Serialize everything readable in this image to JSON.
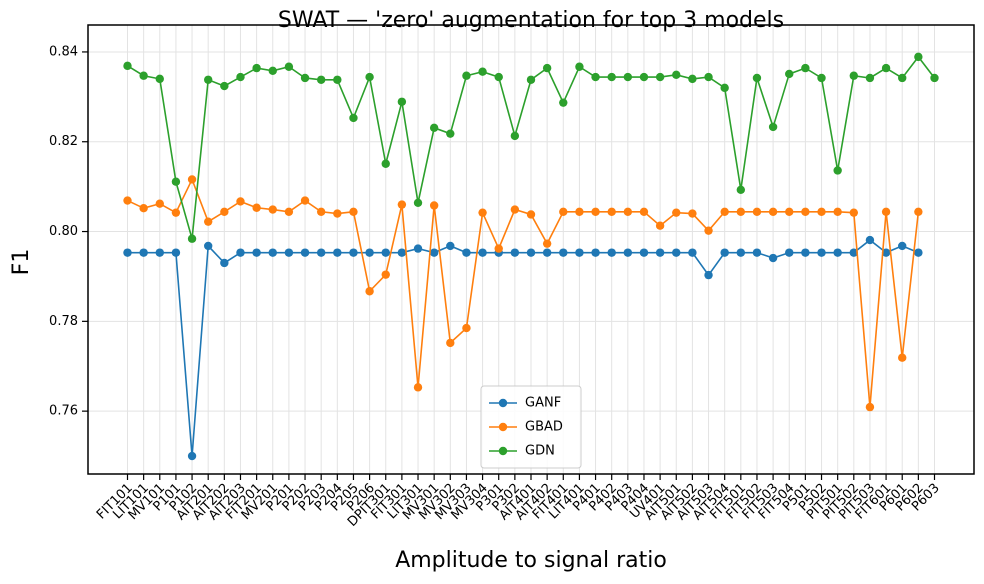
{
  "chart_data": {
    "type": "line",
    "title": "SWAT — 'zero' augmentation for top 3 models",
    "xlabel": "Amplitude to signal ratio",
    "ylabel": "F1",
    "categories": [
      "FIT101",
      "LIT101",
      "MV101",
      "P101",
      "P102",
      "AIT201",
      "AIT202",
      "AIT203",
      "FIT201",
      "MV201",
      "P201",
      "P202",
      "P203",
      "P204",
      "P205",
      "P206",
      "DPIT301",
      "FIT301",
      "LIT301",
      "MV301",
      "MV302",
      "MV303",
      "MV304",
      "P301",
      "P302",
      "AIT401",
      "AIT402",
      "FIT401",
      "LIT401",
      "P401",
      "P402",
      "P403",
      "P404",
      "UV401",
      "AIT501",
      "AIT502",
      "AIT503",
      "AIT504",
      "FIT501",
      "FIT502",
      "FIT503",
      "FIT504",
      "P501",
      "P502",
      "PIT501",
      "PIT502",
      "PIT503",
      "FIT601",
      "P601",
      "P602",
      "P603"
    ],
    "ylim": [
      0.746,
      0.846
    ],
    "yticks": [
      0.76,
      0.78,
      {
        "value": 0.8,
        "label": "0.80"
      },
      0.82,
      0.84
    ],
    "grid": true,
    "legend": "lower center",
    "series": [
      {
        "name": "GANF",
        "color": "#1f77b4",
        "values": [
          0.7953,
          0.7953,
          0.7953,
          0.7953,
          0.75,
          0.7968,
          0.793,
          0.7953,
          0.7953,
          0.7953,
          0.7953,
          0.7953,
          0.7953,
          0.7953,
          0.7953,
          0.7953,
          0.7953,
          0.7953,
          0.7962,
          0.7953,
          0.7968,
          0.7953,
          0.7953,
          0.7953,
          0.7953,
          0.7953,
          0.7953,
          0.7953,
          0.7953,
          0.7953,
          0.7953,
          0.7953,
          0.7953,
          0.7953,
          0.7953,
          0.7953,
          0.7903,
          0.7953,
          0.7953,
          0.7953,
          0.7941,
          0.7953,
          0.7953,
          0.7953,
          0.7953,
          0.7953,
          0.7981,
          0.7953,
          0.7968,
          0.7953,
          null
        ]
      },
      {
        "name": "GBAD",
        "color": "#ff7f0e",
        "values": [
          0.8069,
          0.8052,
          0.8062,
          0.8042,
          0.8116,
          0.8022,
          0.8044,
          0.8067,
          0.8053,
          0.8049,
          0.8044,
          0.8069,
          0.8044,
          0.804,
          0.8044,
          0.7867,
          0.7904,
          0.806,
          0.7653,
          0.8058,
          0.7752,
          0.7785,
          0.8042,
          0.7962,
          0.8049,
          0.8038,
          0.7973,
          0.8044,
          0.8044,
          0.8044,
          0.8044,
          0.8044,
          0.8044,
          0.8013,
          0.8042,
          0.804,
          0.8002,
          0.8044,
          0.8044,
          0.8044,
          0.8044,
          0.8044,
          0.8044,
          0.8044,
          0.8044,
          0.8042,
          0.7609,
          0.8044,
          0.7719,
          0.8044,
          null
        ]
      },
      {
        "name": "GDN",
        "color": "#2ca02c",
        "values": [
          0.8369,
          0.8347,
          0.834,
          0.8111,
          0.7984,
          0.8338,
          0.8324,
          0.8344,
          0.8364,
          0.8358,
          0.8367,
          0.8342,
          0.8338,
          0.8338,
          0.8253,
          0.8344,
          0.8151,
          0.8289,
          0.8064,
          0.8231,
          0.8218,
          0.8347,
          0.8356,
          0.8344,
          0.8213,
          0.8338,
          0.8364,
          0.8287,
          0.8367,
          0.8344,
          0.8344,
          0.8344,
          0.8344,
          0.8344,
          0.8349,
          0.834,
          0.8344,
          0.832,
          0.8093,
          0.8342,
          0.8233,
          0.8351,
          0.8364,
          0.8342,
          0.8136,
          0.8347,
          0.8342,
          0.8364,
          0.8342,
          0.8389,
          0.8342
        ]
      }
    ]
  }
}
